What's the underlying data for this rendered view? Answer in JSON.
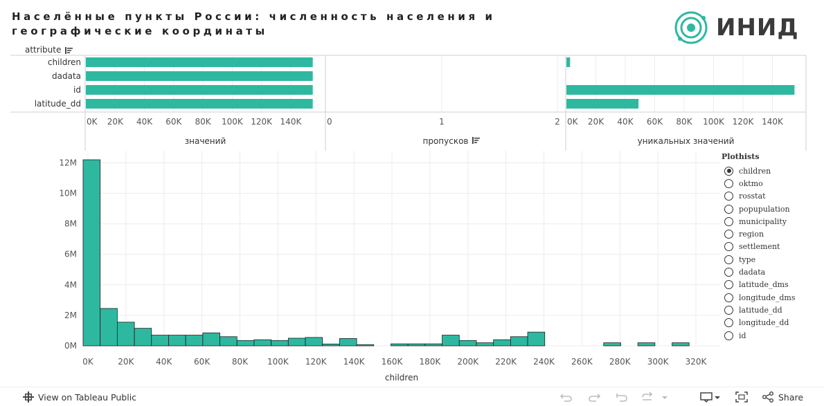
{
  "header": {
    "title": "Населённые пункты России: численность населения и географические координаты",
    "logo_text": "ИНИД"
  },
  "colors": {
    "bar": "#2eb8a0",
    "grid": "#ececec",
    "axis": "#cfcfcf"
  },
  "summary": {
    "attribute_header": "attribute",
    "rows": [
      "children",
      "dadata",
      "id",
      "latitude_dd"
    ],
    "panels": [
      {
        "label": "значений",
        "ticks": [
          "0K",
          "20K",
          "40K",
          "60K",
          "80K",
          "100K",
          "120K",
          "140K"
        ],
        "tick_values": [
          0,
          20000,
          40000,
          60000,
          80000,
          100000,
          120000,
          140000
        ],
        "max": 158000,
        "values": [
          155000,
          155000,
          155000,
          155000
        ]
      },
      {
        "label": "пропусков",
        "ticks": [
          "0",
          "1",
          "2"
        ],
        "tick_values": [
          0,
          1,
          2
        ],
        "max": 2,
        "values": [
          0,
          0,
          0,
          0
        ]
      },
      {
        "label": "уникальных значений",
        "ticks": [
          "0K",
          "20K",
          "40K",
          "60K",
          "80K",
          "100K",
          "120K",
          "140K"
        ],
        "tick_values": [
          0,
          20000,
          40000,
          60000,
          80000,
          100000,
          120000,
          140000
        ],
        "max": 160000,
        "values": [
          2500,
          0,
          155000,
          49000
        ]
      }
    ]
  },
  "chart_data": {
    "type": "bar",
    "title": "",
    "xlabel": "children",
    "ylabel": "",
    "bin_width": 9000,
    "x_range": [
      0,
      330000
    ],
    "ylim": [
      0,
      12200000
    ],
    "x_ticks": [
      0,
      20000,
      40000,
      60000,
      80000,
      100000,
      120000,
      140000,
      160000,
      180000,
      200000,
      220000,
      240000,
      260000,
      280000,
      300000,
      320000
    ],
    "x_tick_labels": [
      "0K",
      "20K",
      "40K",
      "60K",
      "80K",
      "100K",
      "120K",
      "140K",
      "160K",
      "180K",
      "200K",
      "220K",
      "240K",
      "260K",
      "280K",
      "300K",
      "320K"
    ],
    "y_ticks": [
      0,
      2000000,
      4000000,
      6000000,
      8000000,
      10000000,
      12000000
    ],
    "y_tick_labels": [
      "0M",
      "2M",
      "4M",
      "6M",
      "8M",
      "10M",
      "12M"
    ],
    "bins": [
      {
        "x": 0,
        "value": 12200000
      },
      {
        "x": 9000,
        "value": 2450000
      },
      {
        "x": 18000,
        "value": 1550000
      },
      {
        "x": 27000,
        "value": 1150000
      },
      {
        "x": 36000,
        "value": 700000
      },
      {
        "x": 45000,
        "value": 700000
      },
      {
        "x": 54000,
        "value": 700000
      },
      {
        "x": 63000,
        "value": 850000
      },
      {
        "x": 72000,
        "value": 600000
      },
      {
        "x": 81000,
        "value": 350000
      },
      {
        "x": 90000,
        "value": 400000
      },
      {
        "x": 99000,
        "value": 350000
      },
      {
        "x": 108000,
        "value": 500000
      },
      {
        "x": 117000,
        "value": 550000
      },
      {
        "x": 126000,
        "value": 120000
      },
      {
        "x": 135000,
        "value": 480000
      },
      {
        "x": 144000,
        "value": 80000
      },
      {
        "x": 162000,
        "value": 130000
      },
      {
        "x": 171000,
        "value": 130000
      },
      {
        "x": 180000,
        "value": 130000
      },
      {
        "x": 189000,
        "value": 700000
      },
      {
        "x": 198000,
        "value": 350000
      },
      {
        "x": 207000,
        "value": 200000
      },
      {
        "x": 216000,
        "value": 400000
      },
      {
        "x": 225000,
        "value": 600000
      },
      {
        "x": 234000,
        "value": 900000
      },
      {
        "x": 274000,
        "value": 200000
      },
      {
        "x": 292000,
        "value": 200000
      },
      {
        "x": 310000,
        "value": 200000
      }
    ]
  },
  "legend": {
    "title": "Plothists",
    "selected": "children",
    "items": [
      "children",
      "oktmo",
      "rosstat",
      "popupulation",
      "municipality",
      "region",
      "settlement",
      "type",
      "dadata",
      "latitude_dms",
      "longitude_dms",
      "latitude_dd",
      "longitude_dd",
      "id"
    ]
  },
  "footer": {
    "view_label": "View on Tableau Public",
    "share_label": "Share"
  }
}
